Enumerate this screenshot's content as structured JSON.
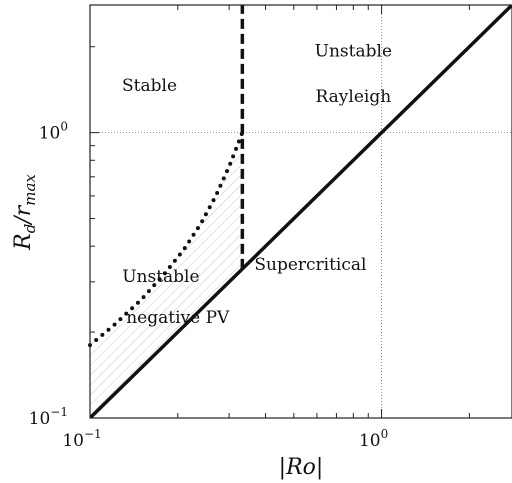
{
  "chart_data": {
    "type": "line",
    "xlabel": "|Ro|",
    "ylabel": "R_d / r_max",
    "xscale": "log",
    "yscale": "log",
    "xlim": [
      0.1,
      2.8
    ],
    "ylim": [
      0.1,
      2.8
    ],
    "grid": "dotted lines at 10^0 on both axes",
    "x_ticks": [
      {
        "value": 0.1,
        "base": "10",
        "exp": "−1"
      },
      {
        "value": 1,
        "base": "10",
        "exp": "0"
      }
    ],
    "y_ticks": [
      {
        "value": 0.1,
        "base": "10",
        "exp": "−1"
      },
      {
        "value": 1,
        "base": "10",
        "exp": "0"
      }
    ],
    "series": [
      {
        "style": "solid",
        "x": [
          0.1,
          2.8
        ],
        "y": [
          0.1,
          2.8
        ]
      },
      {
        "style": "dashed",
        "x": [
          0.333,
          0.333
        ],
        "y": [
          0.333,
          2.8
        ]
      },
      {
        "style": "dotted",
        "x": [
          0.1,
          0.12,
          0.15,
          0.18,
          0.21,
          0.24,
          0.27,
          0.3,
          0.32,
          0.333
        ],
        "y": [
          0.18,
          0.21,
          0.26,
          0.32,
          0.39,
          0.48,
          0.6,
          0.76,
          0.9,
          1.0
        ]
      }
    ],
    "hatched_region_label": "Unstable negative PV",
    "annotations": [
      {
        "text": "Stable",
        "x": 0.16,
        "y": 1.4
      },
      {
        "text": "Unstable",
        "x": 0.8,
        "y": 1.85
      },
      {
        "text": "Rayleigh",
        "x": 0.8,
        "y": 1.28
      },
      {
        "text": "Supercritical",
        "x": 0.57,
        "y": 0.33
      },
      {
        "text": "Unstable",
        "x": 0.175,
        "y": 0.3
      },
      {
        "text": "negative PV",
        "x": 0.2,
        "y": 0.215
      }
    ]
  }
}
